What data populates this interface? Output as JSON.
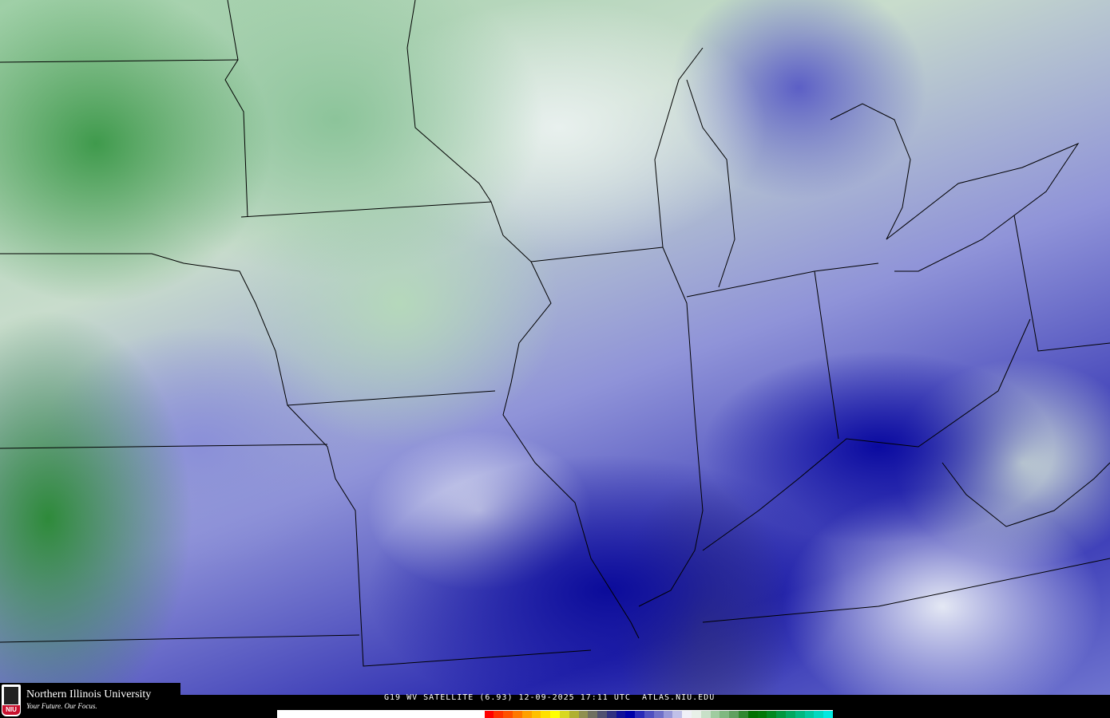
{
  "caption": "G19 WV SATELLITE (6.93) 12-09-2025 17:11 UTC  ATLAS.NIU.EDU",
  "logo": {
    "name": "Northern Illinois University",
    "tagline": "Your Future. Our Focus.",
    "badge": "NIU"
  },
  "colorbar": [
    "#ffffff",
    "#ffffff",
    "#ffffff",
    "#ffffff",
    "#ffffff",
    "#ffffff",
    "#ffffff",
    "#ffffff",
    "#ffffff",
    "#ffffff",
    "#ffffff",
    "#ffffff",
    "#ffffff",
    "#ffffff",
    "#ffffff",
    "#ffffff",
    "#ffffff",
    "#ffffff",
    "#ffffff",
    "#ffffff",
    "#ffffff",
    "#ffffff",
    "#ff0000",
    "#ff3000",
    "#ff5000",
    "#ff7800",
    "#ffa000",
    "#ffc000",
    "#ffe000",
    "#ffff00",
    "#d8d820",
    "#b0b030",
    "#909050",
    "#707060",
    "#505070",
    "#303080",
    "#10109a",
    "#0000a8",
    "#2a2ab8",
    "#5050c0",
    "#7070c8",
    "#9898d8",
    "#c0c0e8",
    "#f0f0f8",
    "#e8f0e8",
    "#c8e0c8",
    "#a0cca0",
    "#80b880",
    "#60a060",
    "#308830",
    "#007000",
    "#007808",
    "#008820",
    "#009840",
    "#00a860",
    "#00b880",
    "#00c8a0",
    "#00d8c0",
    "#00e8e0"
  ]
}
